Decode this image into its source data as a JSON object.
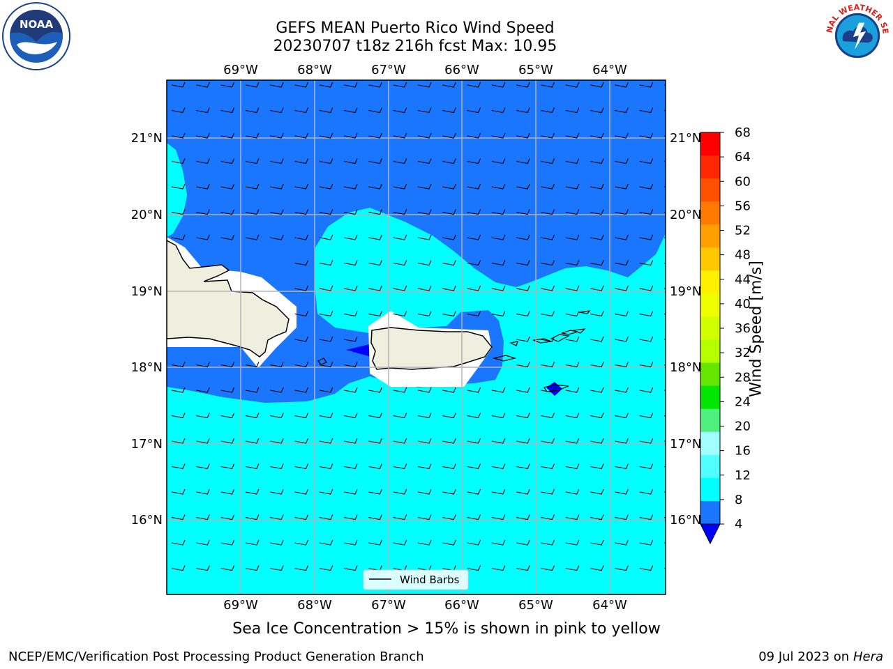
{
  "header": {
    "title_line1": "GEFS MEAN Puerto Rico Wind Speed",
    "title_line2": "20230707 t18z 216h fcst   Max: 10.95"
  },
  "map": {
    "lon_labels": [
      "69°W",
      "68°W",
      "67°W",
      "66°W",
      "65°W",
      "64°W"
    ],
    "lat_labels": [
      "21°N",
      "20°N",
      "19°N",
      "18°N",
      "17°N",
      "16°N"
    ],
    "legend_label": "Wind Barbs",
    "colors": {
      "ocean_strong": "#1a75ff",
      "ocean_light": "#00ffff",
      "land": "#efefe0",
      "grid": "#b4b4b4"
    }
  },
  "colorbar": {
    "label": "Wind Speed [m/s]",
    "ticks": [
      "68",
      "64",
      "60",
      "56",
      "52",
      "48",
      "44",
      "40",
      "36",
      "32",
      "28",
      "24",
      "20",
      "16",
      "12",
      "8",
      "4"
    ],
    "colors": [
      "#ff0000",
      "#ff2800",
      "#ff5000",
      "#ff7800",
      "#ffa000",
      "#ffc800",
      "#fff000",
      "#f0ff00",
      "#d2ff00",
      "#b4ff00",
      "#64e600",
      "#00e600",
      "#50f080",
      "#a0ffff",
      "#50ffff",
      "#00ffff",
      "#1a75ff"
    ],
    "under_color": "#0000ff"
  },
  "footer": {
    "subtitle": "Sea Ice Concentration > 15% is shown in pink to yellow",
    "left": "NCEP/EMC/Verification Post Processing Product Generation Branch",
    "date": "09 Jul 2023 on",
    "host": "Hera"
  },
  "logos": {
    "noaa_text": "NOAA",
    "nws_text": "NATIONAL WEATHER SERVICE"
  }
}
